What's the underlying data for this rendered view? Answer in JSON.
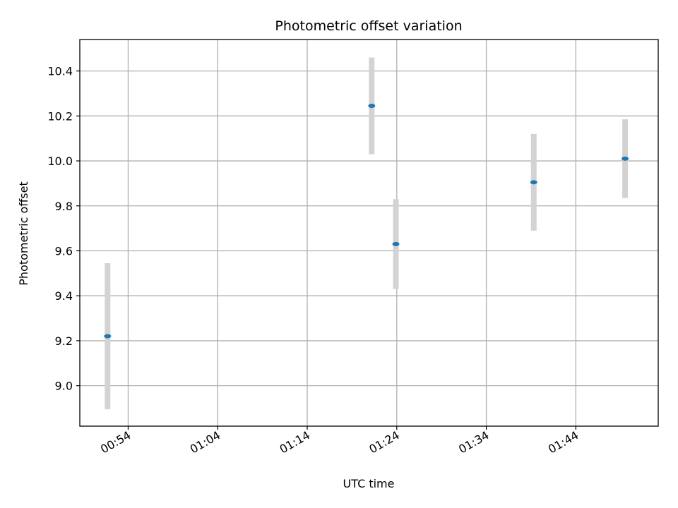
{
  "chart_data": {
    "type": "scatter",
    "title": "Photometric offset variation",
    "xlabel": "UTC time",
    "ylabel": "Photometric offset",
    "x_axis_type": "time",
    "xlim": [
      "00:48:36",
      "01:53:12"
    ],
    "ylim": [
      8.82,
      10.54
    ],
    "x_ticks": [
      "00:54",
      "01:04",
      "01:14",
      "01:24",
      "01:34",
      "01:44"
    ],
    "y_ticks": [
      "9.0",
      "9.2",
      "9.4",
      "9.6",
      "9.8",
      "10.0",
      "10.2",
      "10.4"
    ],
    "grid": true,
    "legend": "none",
    "colors": {
      "marker": "#1f77b4",
      "errorbar": "#d3d3d3",
      "grid": "#b0b0b0"
    },
    "points": [
      {
        "x": "00:51:42",
        "y": 9.22,
        "err": 0.325
      },
      {
        "x": "01:21:12",
        "y": 10.245,
        "err": 0.215
      },
      {
        "x": "01:23:54",
        "y": 9.63,
        "err": 0.2
      },
      {
        "x": "01:39:18",
        "y": 9.905,
        "err": 0.215
      },
      {
        "x": "01:49:30",
        "y": 10.01,
        "err": 0.175
      }
    ]
  }
}
